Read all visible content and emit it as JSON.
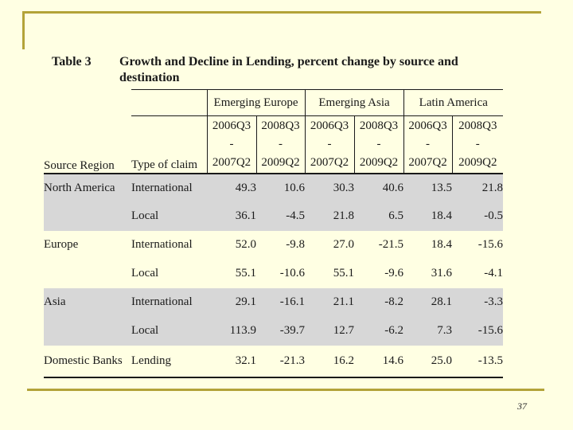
{
  "slide": {
    "page_number": "37",
    "colors": {
      "background": "#FFFFE3",
      "band_gray": "#D7D7D7",
      "accent_gold": "#B3A339",
      "text": "#1A1A1A"
    }
  },
  "table": {
    "label": "Table 3",
    "title": "Growth and Decline in Lending, percent change by source and destination",
    "col_headers": {
      "source_region": "Source Region",
      "type_of_claim": "Type of\nclaim"
    },
    "groups": [
      {
        "label": "Emerging Europe",
        "periods": [
          {
            "from": "2006Q3",
            "sep": "-",
            "to": "2007Q2"
          },
          {
            "from": "2008Q3",
            "sep": "-",
            "to": "2009Q2"
          }
        ]
      },
      {
        "label": "Emerging Asia",
        "periods": [
          {
            "from": "2006Q3",
            "sep": "-",
            "to": "2007Q2"
          },
          {
            "from": "2008Q3",
            "sep": "-",
            "to": "2009Q2"
          }
        ]
      },
      {
        "label": "Latin America",
        "periods": [
          {
            "from": "2006Q3",
            "sep": "-",
            "to": "2007Q2"
          },
          {
            "from": "2008Q3",
            "sep": "-",
            "to": "2009Q2"
          }
        ]
      }
    ],
    "rows": [
      {
        "region": "North America",
        "claim": "International",
        "values": [
          "49.3",
          "10.6",
          "30.3",
          "40.6",
          "13.5",
          "21.8"
        ]
      },
      {
        "region": "",
        "claim": "Local",
        "values": [
          "36.1",
          "-4.5",
          "21.8",
          "6.5",
          "18.4",
          "-0.5"
        ]
      },
      {
        "region": "Europe",
        "claim": "International",
        "values": [
          "52.0",
          "-9.8",
          "27.0",
          "-21.5",
          "18.4",
          "-15.6"
        ]
      },
      {
        "region": "",
        "claim": "Local",
        "values": [
          "55.1",
          "-10.6",
          "55.1",
          "-9.6",
          "31.6",
          "-4.1"
        ]
      },
      {
        "region": "Asia",
        "claim": "International",
        "values": [
          "29.1",
          "-16.1",
          "21.1",
          "-8.2",
          "28.1",
          "-3.3"
        ]
      },
      {
        "region": "",
        "claim": "Local",
        "values": [
          "113.9",
          "-39.7",
          "12.7",
          "-6.2",
          "7.3",
          "-15.6"
        ]
      },
      {
        "region": "Domestic Banks",
        "claim": "Lending",
        "values": [
          "32.1",
          "-21.3",
          "16.2",
          "14.6",
          "25.0",
          "-13.5"
        ]
      }
    ]
  }
}
